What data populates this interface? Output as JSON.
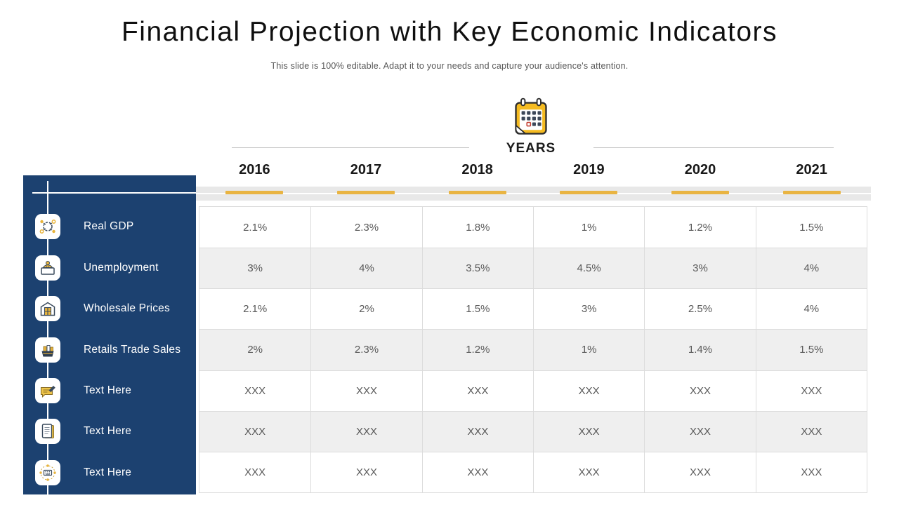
{
  "slide": {
    "title": "Financial Projection with Key Economic Indicators",
    "subtitle": "This slide is 100% editable. Adapt it to your needs and capture your audience's attention."
  },
  "years_section": {
    "label": "YEARS",
    "icon": "calendar-icon"
  },
  "chart_data": {
    "type": "table",
    "columns": [
      "2016",
      "2017",
      "2018",
      "2019",
      "2020",
      "2021"
    ],
    "rows": [
      {
        "label": "Real GDP",
        "icon": "gdp-network-icon",
        "values": [
          "2.1%",
          "2.3%",
          "1.8%",
          "1%",
          "1.2%",
          "1.5%"
        ]
      },
      {
        "label": "Unemployment",
        "icon": "unemployed-person-icon",
        "values": [
          "3%",
          "4%",
          "3.5%",
          "4.5%",
          "3%",
          "4%"
        ]
      },
      {
        "label": "Wholesale Prices",
        "icon": "warehouse-icon",
        "values": [
          "2.1%",
          "2%",
          "1.5%",
          "3%",
          "2.5%",
          "4%"
        ]
      },
      {
        "label": "Retails Trade Sales",
        "icon": "shopping-basket-icon",
        "values": [
          "2%",
          "2.3%",
          "1.2%",
          "1%",
          "1.4%",
          "1.5%"
        ]
      },
      {
        "label": "Text Here",
        "icon": "note-pencil-icon",
        "values": [
          "XXX",
          "XXX",
          "XXX",
          "XXX",
          "XXX",
          "XXX"
        ]
      },
      {
        "label": "Text Here",
        "icon": "notepad-icon",
        "values": [
          "XXX",
          "XXX",
          "XXX",
          "XXX",
          "XXX",
          "XXX"
        ]
      },
      {
        "label": "Text Here",
        "icon": "keyboard-network-icon",
        "values": [
          "XXX",
          "XXX",
          "XXX",
          "XXX",
          "XXX",
          "XXX"
        ]
      }
    ],
    "title": "Financial Projection with Key Economic Indicators",
    "legend_position": "none",
    "grid": true
  },
  "colors": {
    "sidebar_navy": "#1c4170",
    "accent_gold": "#e9b442",
    "header_band_gray": "#e8e8e8",
    "row_alt_gray": "#efefef",
    "cell_border": "#dcdcdc",
    "cell_text": "#595959"
  }
}
